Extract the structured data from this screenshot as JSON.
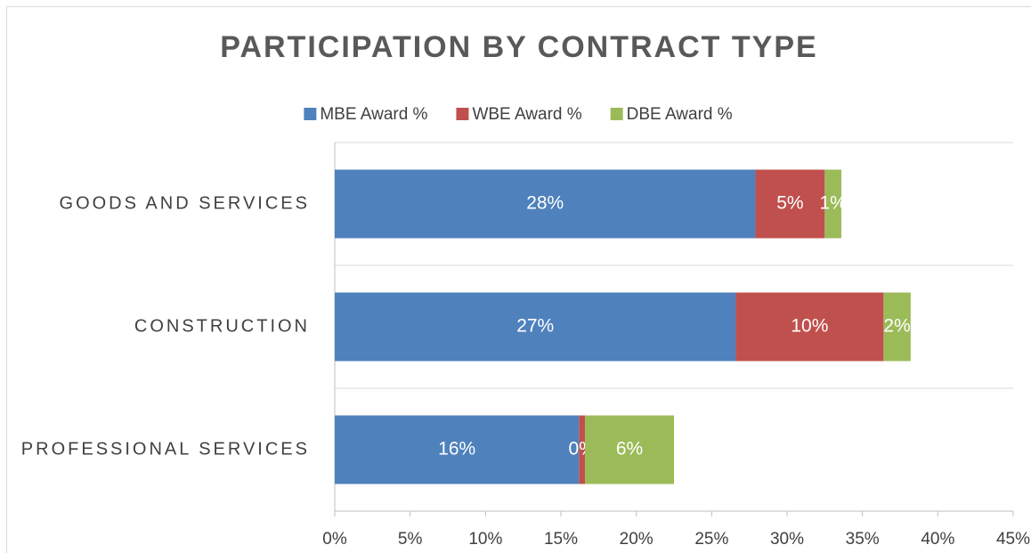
{
  "chart_data": {
    "type": "stacked_bar_horizontal",
    "title": "PARTICIPATION BY CONTRACT TYPE",
    "categories": [
      "GOODS AND SERVICES",
      "CONSTRUCTION",
      "PROFESSIONAL SERVICES"
    ],
    "series": [
      {
        "name": "MBE Award %",
        "color": "#4f81bd",
        "values": [
          27.9,
          26.6,
          16.2
        ],
        "value_labels": [
          "28%",
          "27%",
          "16%"
        ]
      },
      {
        "name": "WBE Award %",
        "color": "#c0504d",
        "values": [
          4.6,
          9.8,
          0.4
        ],
        "value_labels": [
          "5%",
          "10%",
          "0%"
        ]
      },
      {
        "name": "DBE Award %",
        "color": "#9bbb59",
        "values": [
          1.1,
          1.8,
          5.9
        ],
        "value_labels": [
          "1%",
          "2%",
          "6%"
        ]
      }
    ],
    "xlim": [
      0,
      45
    ],
    "xticks": [
      {
        "value": 0,
        "label": "0%"
      },
      {
        "value": 5,
        "label": "5%"
      },
      {
        "value": 10,
        "label": "10%"
      },
      {
        "value": 15,
        "label": "15%"
      },
      {
        "value": 20,
        "label": "20%"
      },
      {
        "value": 25,
        "label": "25%"
      },
      {
        "value": 30,
        "label": "30%"
      },
      {
        "value": 35,
        "label": "35%"
      },
      {
        "value": 40,
        "label": "40%"
      },
      {
        "value": 45,
        "label": "45%"
      }
    ],
    "legend": "top"
  }
}
